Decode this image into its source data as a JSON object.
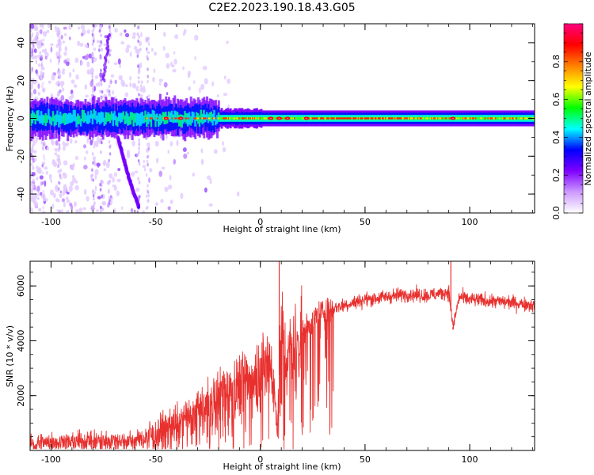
{
  "title": "C2E2.2023.190.18.43.G05",
  "chart_data": [
    {
      "type": "heatmap",
      "name": "spectrogram",
      "xlabel": "Height of straight line (km)",
      "ylabel": "Frequency (Hz)",
      "xlim": [
        -110,
        131
      ],
      "ylim": [
        -50,
        50
      ],
      "xticks": [
        "-100",
        "-50",
        "0",
        "50",
        "100"
      ],
      "xtick_values": [
        -100,
        -50,
        0,
        50,
        100
      ],
      "yticks": [
        "-40",
        "-20",
        "0",
        "20",
        "40"
      ],
      "ytick_values": [
        -40,
        -20,
        0,
        20,
        40
      ],
      "features": {
        "carrier_frequency_hz": 0,
        "ionospheric_scatter_range_km": [
          -110,
          -10
        ],
        "descending_branch": {
          "from_height_km": -68,
          "from_freq_hz": -10,
          "to_height_km": -58,
          "to_freq_hz": -47
        },
        "ascending_streak": {
          "from_height_km": -75,
          "from_freq_hz": 20,
          "to_height_km": -72,
          "to_freq_hz": 45
        },
        "strong_tone_range_km": [
          -55,
          131
        ]
      },
      "colorbar": {
        "label": "Normalized spectral amplitude",
        "range": [
          0,
          1
        ],
        "ticks": [
          "0.0",
          "0.2",
          "0.4",
          "0.6",
          "0.8"
        ],
        "tick_values": [
          0.0,
          0.2,
          0.4,
          0.6,
          0.8
        ],
        "colors": [
          "#ffffff",
          "#cc99ff",
          "#7f00ff",
          "#0000ff",
          "#00ffff",
          "#00ff00",
          "#ffff00",
          "#ff8000",
          "#ff0000",
          "#ff0080"
        ]
      }
    },
    {
      "type": "line",
      "name": "snr",
      "xlabel": "Height of straight line (km)",
      "ylabel": "SNR (10 * v/v)",
      "xlim": [
        -110,
        131
      ],
      "ylim": [
        0,
        6900
      ],
      "xticks": [
        "-100",
        "-50",
        "0",
        "50",
        "100"
      ],
      "xtick_values": [
        -100,
        -50,
        0,
        50,
        100
      ],
      "yticks": [
        "2000",
        "4000",
        "6000"
      ],
      "ytick_values": [
        2000,
        4000,
        6000
      ],
      "color": "#e8312f",
      "series": [
        {
          "name": "SNR",
          "x": [
            -110,
            -100,
            -90,
            -80,
            -70,
            -60,
            -55,
            -50,
            -45,
            -40,
            -35,
            -30,
            -25,
            -20,
            -15,
            -10,
            -5,
            0,
            5,
            8,
            10,
            12,
            15,
            20,
            25,
            30,
            40,
            50,
            60,
            70,
            80,
            88,
            90,
            92,
            95,
            100,
            110,
            120,
            131
          ],
          "y": [
            250,
            350,
            350,
            400,
            400,
            400,
            450,
            650,
            900,
            1000,
            1300,
            1500,
            1800,
            2100,
            2300,
            2500,
            2700,
            3000,
            3400,
            1000,
            4500,
            3300,
            3600,
            4300,
            4800,
            5100,
            5300,
            5500,
            5600,
            5700,
            5650,
            5750,
            5800,
            4500,
            5600,
            5500,
            5450,
            5400,
            5300
          ]
        }
      ],
      "spikes": [
        {
          "x": 9,
          "y": 6900
        },
        {
          "x": 8,
          "y": 900
        },
        {
          "x": 91,
          "y": 6900
        },
        {
          "x": 92,
          "y": 4400
        }
      ]
    }
  ]
}
